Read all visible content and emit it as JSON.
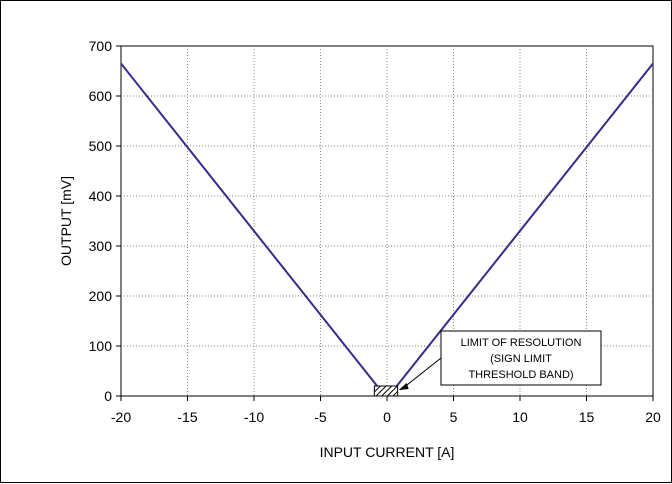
{
  "chart_data": {
    "type": "line",
    "title": "",
    "xlabel": "INPUT CURRENT [A]",
    "ylabel": "OUTPUT [mV]",
    "xlim": [
      -20,
      20
    ],
    "ylim": [
      0,
      700
    ],
    "xticks": [
      -20,
      -15,
      -10,
      -5,
      0,
      5,
      10,
      15,
      20
    ],
    "yticks": [
      0,
      100,
      200,
      300,
      400,
      500,
      600,
      700
    ],
    "grid": true,
    "series": [
      {
        "x": [
          -20,
          -0.5
        ],
        "y": [
          665,
          12
        ],
        "color": "#3a2a8c"
      },
      {
        "x": [
          0.5,
          20
        ],
        "y": [
          12,
          665
        ],
        "color": "#3a2a8c"
      }
    ],
    "annotation": {
      "lines": [
        "LIMIT OF RESOLUTION",
        "(SIGN LIMIT",
        "THRESHOLD BAND)"
      ],
      "target_x_range": [
        -0.5,
        0.5
      ],
      "target_y_range": [
        0,
        20
      ]
    }
  }
}
